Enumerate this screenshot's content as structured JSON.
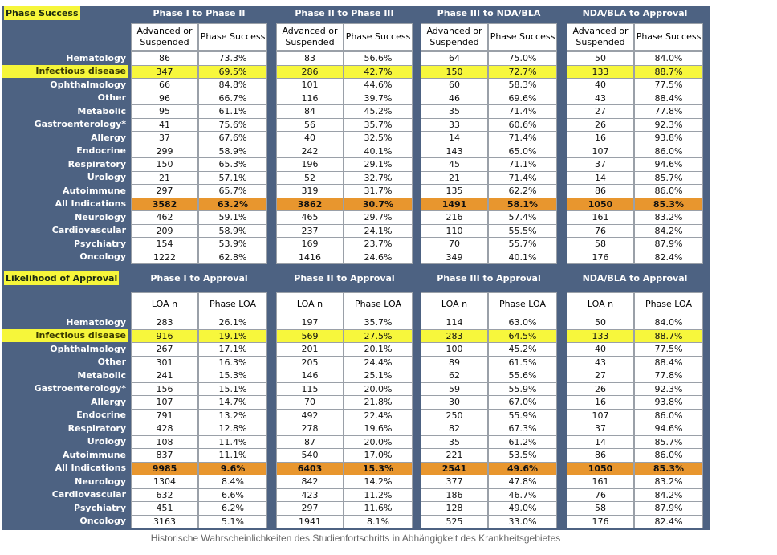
{
  "sections": [
    {
      "title": "Phase Success",
      "groups": [
        "Phase I to Phase II",
        "Phase II to Phase III",
        "Phase III to NDA/BLA",
        "NDA/BLA to Approval"
      ],
      "columns": [
        "Advanced or Suspended",
        "Phase Success"
      ],
      "rows": [
        {
          "label": "Hematology",
          "cells": [
            [
              86,
              "73.3%"
            ],
            [
              83,
              "56.6%"
            ],
            [
              64,
              "75.0%"
            ],
            [
              50,
              "84.0%"
            ]
          ]
        },
        {
          "label": "Infectious disease",
          "cells": [
            [
              347,
              "69.5%"
            ],
            [
              286,
              "42.7%"
            ],
            [
              150,
              "72.7%"
            ],
            [
              133,
              "88.7%"
            ]
          ]
        },
        {
          "label": "Ophthalmology",
          "cells": [
            [
              66,
              "84.8%"
            ],
            [
              101,
              "44.6%"
            ],
            [
              60,
              "58.3%"
            ],
            [
              40,
              "77.5%"
            ]
          ]
        },
        {
          "label": "Other",
          "cells": [
            [
              96,
              "66.7%"
            ],
            [
              116,
              "39.7%"
            ],
            [
              46,
              "69.6%"
            ],
            [
              43,
              "88.4%"
            ]
          ]
        },
        {
          "label": "Metabolic",
          "cells": [
            [
              95,
              "61.1%"
            ],
            [
              84,
              "45.2%"
            ],
            [
              35,
              "71.4%"
            ],
            [
              27,
              "77.8%"
            ]
          ]
        },
        {
          "label": "Gastroenterology*",
          "cells": [
            [
              41,
              "75.6%"
            ],
            [
              56,
              "35.7%"
            ],
            [
              33,
              "60.6%"
            ],
            [
              26,
              "92.3%"
            ]
          ]
        },
        {
          "label": "Allergy",
          "cells": [
            [
              37,
              "67.6%"
            ],
            [
              40,
              "32.5%"
            ],
            [
              14,
              "71.4%"
            ],
            [
              16,
              "93.8%"
            ]
          ]
        },
        {
          "label": "Endocrine",
          "cells": [
            [
              299,
              "58.9%"
            ],
            [
              242,
              "40.1%"
            ],
            [
              143,
              "65.0%"
            ],
            [
              107,
              "86.0%"
            ]
          ]
        },
        {
          "label": "Respiratory",
          "cells": [
            [
              150,
              "65.3%"
            ],
            [
              196,
              "29.1%"
            ],
            [
              45,
              "71.1%"
            ],
            [
              37,
              "94.6%"
            ]
          ]
        },
        {
          "label": "Urology",
          "cells": [
            [
              21,
              "57.1%"
            ],
            [
              52,
              "32.7%"
            ],
            [
              21,
              "71.4%"
            ],
            [
              14,
              "85.7%"
            ]
          ]
        },
        {
          "label": "Autoimmune",
          "cells": [
            [
              297,
              "65.7%"
            ],
            [
              319,
              "31.7%"
            ],
            [
              135,
              "62.2%"
            ],
            [
              86,
              "86.0%"
            ]
          ]
        },
        {
          "label": "All Indications",
          "cells": [
            [
              3582,
              "63.2%"
            ],
            [
              3862,
              "30.7%"
            ],
            [
              1491,
              "58.1%"
            ],
            [
              1050,
              "85.3%"
            ]
          ]
        },
        {
          "label": "Neurology",
          "cells": [
            [
              462,
              "59.1%"
            ],
            [
              465,
              "29.7%"
            ],
            [
              216,
              "57.4%"
            ],
            [
              161,
              "83.2%"
            ]
          ]
        },
        {
          "label": "Cardiovascular",
          "cells": [
            [
              209,
              "58.9%"
            ],
            [
              237,
              "24.1%"
            ],
            [
              110,
              "55.5%"
            ],
            [
              76,
              "84.2%"
            ]
          ]
        },
        {
          "label": "Psychiatry",
          "cells": [
            [
              154,
              "53.9%"
            ],
            [
              169,
              "23.7%"
            ],
            [
              70,
              "55.7%"
            ],
            [
              58,
              "87.9%"
            ]
          ]
        },
        {
          "label": "Oncology",
          "cells": [
            [
              1222,
              "62.8%"
            ],
            [
              1416,
              "24.6%"
            ],
            [
              349,
              "40.1%"
            ],
            [
              176,
              "82.4%"
            ]
          ]
        }
      ]
    },
    {
      "title": "Likelihood of Approval",
      "groups": [
        "Phase I to Approval",
        "Phase II to Approval",
        "Phase III to Approval",
        "NDA/BLA to Approval"
      ],
      "columns": [
        "LOA n",
        "Phase LOA"
      ],
      "rows": [
        {
          "label": "Hematology",
          "cells": [
            [
              283,
              "26.1%"
            ],
            [
              197,
              "35.7%"
            ],
            [
              114,
              "63.0%"
            ],
            [
              50,
              "84.0%"
            ]
          ]
        },
        {
          "label": "Infectious disease",
          "cells": [
            [
              916,
              "19.1%"
            ],
            [
              569,
              "27.5%"
            ],
            [
              283,
              "64.5%"
            ],
            [
              133,
              "88.7%"
            ]
          ]
        },
        {
          "label": "Ophthalmology",
          "cells": [
            [
              267,
              "17.1%"
            ],
            [
              201,
              "20.1%"
            ],
            [
              100,
              "45.2%"
            ],
            [
              40,
              "77.5%"
            ]
          ]
        },
        {
          "label": "Other",
          "cells": [
            [
              301,
              "16.3%"
            ],
            [
              205,
              "24.4%"
            ],
            [
              89,
              "61.5%"
            ],
            [
              43,
              "88.4%"
            ]
          ]
        },
        {
          "label": "Metabolic",
          "cells": [
            [
              241,
              "15.3%"
            ],
            [
              146,
              "25.1%"
            ],
            [
              62,
              "55.6%"
            ],
            [
              27,
              "77.8%"
            ]
          ]
        },
        {
          "label": "Gastroenterology*",
          "cells": [
            [
              156,
              "15.1%"
            ],
            [
              115,
              "20.0%"
            ],
            [
              59,
              "55.9%"
            ],
            [
              26,
              "92.3%"
            ]
          ]
        },
        {
          "label": "Allergy",
          "cells": [
            [
              107,
              "14.7%"
            ],
            [
              70,
              "21.8%"
            ],
            [
              30,
              "67.0%"
            ],
            [
              16,
              "93.8%"
            ]
          ]
        },
        {
          "label": "Endocrine",
          "cells": [
            [
              791,
              "13.2%"
            ],
            [
              492,
              "22.4%"
            ],
            [
              250,
              "55.9%"
            ],
            [
              107,
              "86.0%"
            ]
          ]
        },
        {
          "label": "Respiratory",
          "cells": [
            [
              428,
              "12.8%"
            ],
            [
              278,
              "19.6%"
            ],
            [
              82,
              "67.3%"
            ],
            [
              37,
              "94.6%"
            ]
          ]
        },
        {
          "label": "Urology",
          "cells": [
            [
              108,
              "11.4%"
            ],
            [
              87,
              "20.0%"
            ],
            [
              35,
              "61.2%"
            ],
            [
              14,
              "85.7%"
            ]
          ]
        },
        {
          "label": "Autoimmune",
          "cells": [
            [
              837,
              "11.1%"
            ],
            [
              540,
              "17.0%"
            ],
            [
              221,
              "53.5%"
            ],
            [
              86,
              "86.0%"
            ]
          ]
        },
        {
          "label": "All Indications",
          "cells": [
            [
              9985,
              "9.6%"
            ],
            [
              6403,
              "15.3%"
            ],
            [
              2541,
              "49.6%"
            ],
            [
              1050,
              "85.3%"
            ]
          ]
        },
        {
          "label": "Neurology",
          "cells": [
            [
              1304,
              "8.4%"
            ],
            [
              842,
              "14.2%"
            ],
            [
              377,
              "47.8%"
            ],
            [
              161,
              "83.2%"
            ]
          ]
        },
        {
          "label": "Cardiovascular",
          "cells": [
            [
              632,
              "6.6%"
            ],
            [
              423,
              "11.2%"
            ],
            [
              186,
              "46.7%"
            ],
            [
              76,
              "84.2%"
            ]
          ]
        },
        {
          "label": "Psychiatry",
          "cells": [
            [
              451,
              "6.2%"
            ],
            [
              297,
              "11.6%"
            ],
            [
              128,
              "49.0%"
            ],
            [
              58,
              "87.9%"
            ]
          ]
        },
        {
          "label": "Oncology",
          "cells": [
            [
              3163,
              "5.1%"
            ],
            [
              1941,
              "8.1%"
            ],
            [
              525,
              "33.0%"
            ],
            [
              176,
              "82.4%"
            ]
          ]
        }
      ]
    }
  ],
  "caption": "Historische Wahrscheinlichkeiten des Studienfortschritts in Abhängigkeit des Krankheitsgebietes"
}
